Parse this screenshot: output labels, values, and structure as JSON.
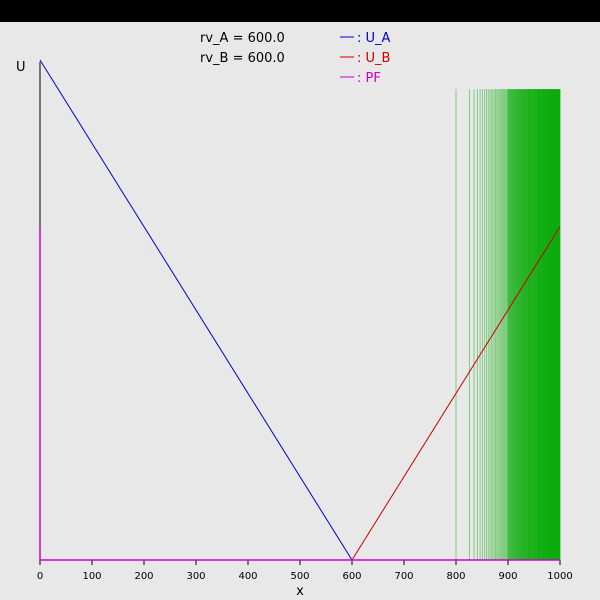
{
  "chart_data": {
    "type": "line",
    "title": "",
    "xlabel": "x",
    "ylabel": "U",
    "xlim": [
      0,
      1000
    ],
    "ylim": [
      0,
      600
    ],
    "xticks": [
      0,
      100,
      200,
      300,
      400,
      500,
      600,
      700,
      800,
      900,
      1000
    ],
    "annotations": [
      "rv_A = 600.0",
      "rv_B = 600.0"
    ],
    "legend": {
      "position": "top-center",
      "entries": [
        {
          "label": ": U_A",
          "color": "#0000cc"
        },
        {
          "label": ": U_B",
          "color": "#cc0000"
        },
        {
          "label": ": PF",
          "color": "#cc00cc"
        }
      ]
    },
    "series": [
      {
        "name": ": U_A",
        "color": "#0000cc",
        "x": [
          0,
          600,
          1000
        ],
        "y": [
          600,
          0,
          0
        ]
      },
      {
        "name": ": U_B",
        "color": "#cc0000",
        "x": [
          0,
          600,
          1000
        ],
        "y": [
          0,
          0,
          400
        ]
      },
      {
        "name": ": PF",
        "color": "#cc00cc",
        "x": [
          0,
          0,
          0,
          1000
        ],
        "y": [
          400,
          0,
          0,
          0
        ]
      }
    ],
    "green_lines": {
      "color": "#00aa00",
      "x_start": 800,
      "x_end": 1000,
      "y_top": 565
    }
  }
}
